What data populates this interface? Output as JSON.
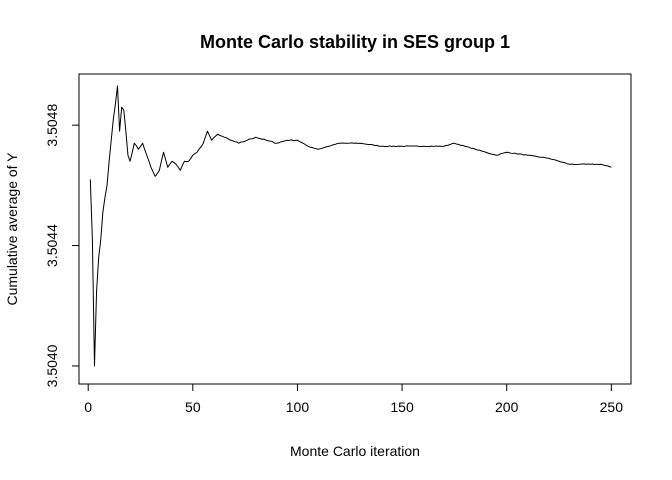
{
  "chart_data": {
    "type": "line",
    "title": "Monte Carlo stability in SES group 1",
    "xlabel": "Monte Carlo iteration",
    "ylabel": "Cumulative average of Y",
    "xlim": [
      -4.4,
      259.4
    ],
    "ylim": [
      3.50394,
      3.50497
    ],
    "x_ticks": [
      0,
      50,
      100,
      150,
      200,
      250
    ],
    "y_ticks": [
      3.504,
      3.5044,
      3.5048
    ],
    "x_tick_labels": [
      "0",
      "50",
      "100",
      "150",
      "200",
      "250"
    ],
    "y_tick_labels": [
      "3.5040",
      "3.5044",
      "3.5048"
    ],
    "grid": false,
    "series": [
      {
        "color": "#000000",
        "anchors": [
          [
            1,
            3.50462
          ],
          [
            2,
            3.50442
          ],
          [
            3,
            3.504
          ],
          [
            4,
            3.50425
          ],
          [
            5,
            3.50436
          ],
          [
            6,
            3.50442
          ],
          [
            7,
            3.50451
          ],
          [
            8,
            3.50456
          ],
          [
            9,
            3.5046
          ],
          [
            10,
            3.50468
          ],
          [
            11,
            3.50475
          ],
          [
            12,
            3.50482
          ],
          [
            13,
            3.50487
          ],
          [
            14,
            3.50493
          ],
          [
            15,
            3.50478
          ],
          [
            16,
            3.50486
          ],
          [
            17,
            3.50485
          ],
          [
            18,
            3.50478
          ],
          [
            19,
            3.5047
          ],
          [
            20,
            3.50468
          ],
          [
            22,
            3.50474
          ],
          [
            24,
            3.50472
          ],
          [
            26,
            3.50474
          ],
          [
            28,
            3.5047
          ],
          [
            30,
            3.50466
          ],
          [
            32,
            3.50463
          ],
          [
            34,
            3.50465
          ],
          [
            36,
            3.50471
          ],
          [
            38,
            3.50466
          ],
          [
            40,
            3.50468
          ],
          [
            42,
            3.50467
          ],
          [
            44,
            3.50465
          ],
          [
            46,
            3.50468
          ],
          [
            48,
            3.50468
          ],
          [
            50,
            3.5047
          ],
          [
            52,
            3.50471
          ],
          [
            55,
            3.50474
          ],
          [
            57,
            3.50478
          ],
          [
            59,
            3.50475
          ],
          [
            62,
            3.50477
          ],
          [
            65,
            3.50476
          ],
          [
            68,
            3.50475
          ],
          [
            72,
            3.50474
          ],
          [
            76,
            3.50475
          ],
          [
            80,
            3.50476
          ],
          [
            85,
            3.50475
          ],
          [
            90,
            3.50474
          ],
          [
            95,
            3.50475
          ],
          [
            100,
            3.50475
          ],
          [
            105,
            3.50473
          ],
          [
            110,
            3.50472
          ],
          [
            115,
            3.50473
          ],
          [
            120,
            3.50474
          ],
          [
            130,
            3.50474
          ],
          [
            140,
            3.50473
          ],
          [
            150,
            3.50473
          ],
          [
            160,
            3.50473
          ],
          [
            170,
            3.50473
          ],
          [
            175,
            3.50474
          ],
          [
            180,
            3.50473
          ],
          [
            185,
            3.50472
          ],
          [
            190,
            3.50471
          ],
          [
            195,
            3.5047
          ],
          [
            200,
            3.50471
          ],
          [
            210,
            3.5047
          ],
          [
            220,
            3.50469
          ],
          [
            225,
            3.50468
          ],
          [
            230,
            3.50467
          ],
          [
            235,
            3.50467
          ],
          [
            240,
            3.50467
          ],
          [
            245,
            3.50467
          ],
          [
            250,
            3.50466
          ]
        ]
      }
    ]
  }
}
